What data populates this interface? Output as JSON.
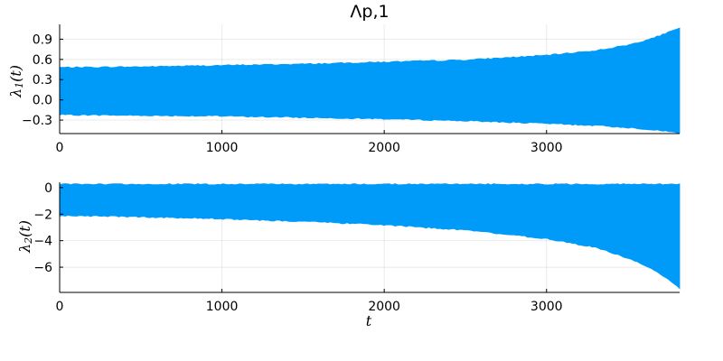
{
  "chart_data": [
    {
      "type": "area",
      "title": "Λp,1",
      "ylabel": {
        "base": "λ",
        "sub": "1",
        "suffix": "(t)"
      },
      "xlabel": "",
      "xlim": [
        0,
        3820
      ],
      "ylim": [
        -0.5,
        1.12
      ],
      "x_ticks": [
        0,
        1000,
        2000,
        3000
      ],
      "x_tick_labels": [
        "0",
        "1000",
        "2000",
        "3000"
      ],
      "y_ticks": [
        0.9,
        0.6,
        0.3,
        0.0,
        -0.3
      ],
      "y_tick_labels": [
        "0.9",
        "0.6",
        "0.3",
        "0.0",
        "−0.3"
      ],
      "grid": true,
      "color": "#009AF9",
      "series": [
        {
          "x": [
            0,
            500,
            1000,
            1500,
            2000,
            2500,
            3000,
            3300,
            3500,
            3650,
            3750,
            3820
          ],
          "upper": [
            0.48,
            0.49,
            0.51,
            0.53,
            0.56,
            0.59,
            0.66,
            0.73,
            0.81,
            0.91,
            1.0,
            1.06
          ],
          "lower": [
            -0.22,
            -0.23,
            -0.24,
            -0.26,
            -0.28,
            -0.31,
            -0.35,
            -0.38,
            -0.41,
            -0.44,
            -0.47,
            -0.49
          ]
        }
      ]
    },
    {
      "type": "area",
      "title": "",
      "ylabel": {
        "base": "λ",
        "sub": "2",
        "suffix": "(t)"
      },
      "xlabel": "t",
      "xlim": [
        0,
        3820
      ],
      "ylim": [
        -7.9,
        0.4
      ],
      "x_ticks": [
        0,
        1000,
        2000,
        3000
      ],
      "x_tick_labels": [
        "0",
        "1000",
        "2000",
        "3000"
      ],
      "y_ticks": [
        0,
        -2,
        -4,
        -6
      ],
      "y_tick_labels": [
        "0",
        "−2",
        "−4",
        "−6"
      ],
      "grid": true,
      "color": "#009AF9",
      "series": [
        {
          "x": [
            0,
            500,
            1000,
            1500,
            2000,
            2500,
            3000,
            3300,
            3500,
            3650,
            3750,
            3820
          ],
          "upper": [
            0.25,
            0.25,
            0.25,
            0.25,
            0.25,
            0.25,
            0.25,
            0.25,
            0.25,
            0.25,
            0.25,
            0.25
          ],
          "lower": [
            -2.1,
            -2.2,
            -2.35,
            -2.55,
            -2.8,
            -3.2,
            -3.85,
            -4.5,
            -5.3,
            -6.1,
            -6.9,
            -7.6
          ]
        }
      ]
    }
  ]
}
